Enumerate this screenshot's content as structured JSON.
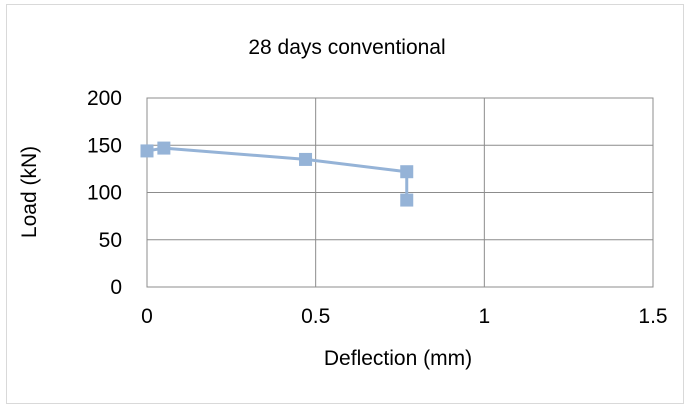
{
  "chart_data": {
    "type": "scatter",
    "title": "28 days conventional",
    "xlabel": "Deflection (mm)",
    "ylabel": "Load (kN)",
    "xlim": [
      0,
      1.5
    ],
    "ylim": [
      0,
      200
    ],
    "x_ticks": [
      0,
      0.5,
      1,
      1.5
    ],
    "y_ticks": [
      0,
      50,
      100,
      150,
      200
    ],
    "x_tick_labels": [
      "0",
      "0.5",
      "1",
      "1.5"
    ],
    "y_tick_labels": [
      "0",
      "50",
      "100",
      "150",
      "200"
    ],
    "grid": true,
    "legend": "none",
    "series": [
      {
        "x": [
          0,
          0.05,
          0.47,
          0.77,
          0.77
        ],
        "y": [
          144,
          147,
          135,
          122,
          92
        ],
        "color": "#95b3d7",
        "marker": "square",
        "line": true
      }
    ]
  }
}
